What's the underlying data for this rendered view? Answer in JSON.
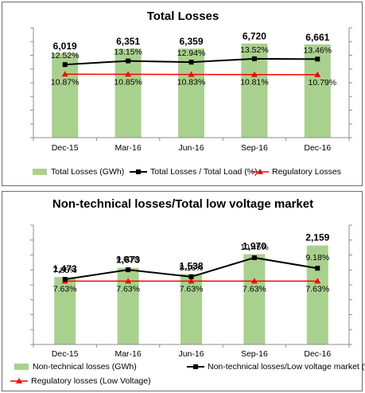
{
  "charts": [
    {
      "type": "bar",
      "title": "Total Losses",
      "categories": [
        "Dec-15",
        "Mar-16",
        "Jun-16",
        "Sep-16",
        "Dec-16"
      ],
      "series": [
        {
          "name": "Total Losses (GWh)",
          "kind": "bar",
          "color": "#a9d18e",
          "values": [
            6019,
            6351,
            6359,
            6720,
            6661
          ],
          "labels": [
            "6,019",
            "6,351",
            "6,359",
            "6,720",
            "6,661"
          ]
        },
        {
          "name": "Total Losses / Total Load (%)",
          "kind": "line",
          "color": "#000000",
          "marker": "square",
          "values": [
            12.52,
            13.15,
            12.94,
            13.52,
            13.46
          ],
          "labels": [
            "12.52%",
            "13.15%",
            "12.94%",
            "13.52%",
            "13.46%"
          ]
        },
        {
          "name": "Regulatory Losses",
          "kind": "line",
          "color": "#ff0000",
          "marker": "triangle",
          "values": [
            10.87,
            10.85,
            10.83,
            10.81,
            10.79
          ],
          "labels": [
            "10.87%",
            "10.85%",
            "10.83%",
            "10.81%",
            "10.79%"
          ]
        }
      ],
      "legend_position": "bottom"
    },
    {
      "type": "bar",
      "title": "Non-technical losses/Total low voltage market",
      "categories": [
        "Dec-15",
        "Mar-16",
        "Jun-16",
        "Sep-16",
        "Dec-16"
      ],
      "series": [
        {
          "name": "Non-technical losses (GWh)",
          "kind": "bar",
          "color": "#a9d18e",
          "values": [
            1473,
            1673,
            1538,
            1970,
            2159
          ],
          "labels": [
            "1,473",
            "1,673",
            "1,538",
            "1,970",
            "2,159"
          ]
        },
        {
          "name": "Non-technical losses/Low voltage market (%)",
          "kind": "line",
          "color": "#000000",
          "marker": "square",
          "values": [
            7.85,
            9.0,
            8.16,
            10.45,
            9.18
          ],
          "labels": [
            "7.85%",
            "9.00%",
            "8.16%",
            "10.45%",
            "9.18%"
          ]
        },
        {
          "name": "Regulatory losses (Low Voltage)",
          "kind": "line",
          "color": "#ff0000",
          "marker": "triangle",
          "values": [
            7.63,
            7.63,
            7.63,
            7.63,
            7.63
          ],
          "labels": [
            "7.63%",
            "7.63%",
            "7.63%",
            "7.63%",
            "7.63%"
          ]
        }
      ],
      "legend_position": "bottom"
    }
  ],
  "chart_data": [
    {
      "type": "bar",
      "title": "Total Losses",
      "categories": [
        "Dec-15",
        "Mar-16",
        "Jun-16",
        "Sep-16",
        "Dec-16"
      ],
      "series": [
        {
          "name": "Total Losses (GWh)",
          "type": "bar",
          "values": [
            6019,
            6351,
            6359,
            6720,
            6661
          ]
        },
        {
          "name": "Total Losses / Total Load (%)",
          "type": "line",
          "values": [
            12.52,
            13.15,
            12.94,
            13.52,
            13.46
          ]
        },
        {
          "name": "Regulatory Losses",
          "type": "line",
          "values": [
            10.87,
            10.85,
            10.83,
            10.81,
            10.79
          ]
        }
      ],
      "grid": false,
      "legend": "bottom"
    },
    {
      "type": "bar",
      "title": "Non-technical losses/Total low voltage market",
      "categories": [
        "Dec-15",
        "Mar-16",
        "Jun-16",
        "Sep-16",
        "Dec-16"
      ],
      "series": [
        {
          "name": "Non-technical losses (GWh)",
          "type": "bar",
          "values": [
            1473,
            1673,
            1538,
            1970,
            2159
          ]
        },
        {
          "name": "Non-technical losses/Low voltage market (%)",
          "type": "line",
          "values": [
            7.85,
            9.0,
            8.16,
            10.45,
            9.18
          ]
        },
        {
          "name": "Regulatory losses (Low Voltage)",
          "type": "line",
          "values": [
            7.63,
            7.63,
            7.63,
            7.63,
            7.63
          ]
        }
      ],
      "grid": false,
      "legend": "bottom"
    }
  ]
}
